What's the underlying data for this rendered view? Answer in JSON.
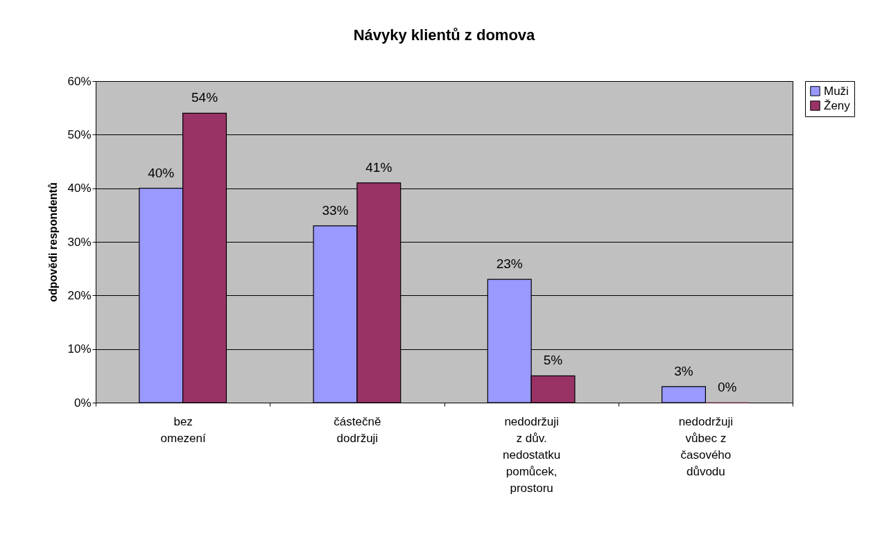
{
  "chart_data": {
    "type": "bar",
    "title": "Návyky klientů z domova",
    "ylabel": "odpovědi respondentů",
    "categories": [
      "bez omezení",
      "částečně dodržuji",
      "nedodržuji z dův. nedostatku pomůcek, prostoru",
      "nedodržuji vůbec z časového důvodu"
    ],
    "series": [
      {
        "name": "Muži",
        "color": "#9999ff",
        "values": [
          40,
          33,
          23,
          3
        ],
        "value_labels": [
          "40%",
          "33%",
          "23%",
          "3%"
        ]
      },
      {
        "name": "Ženy",
        "color": "#993366",
        "values": [
          54,
          41,
          5,
          0
        ],
        "value_labels": [
          "54%",
          "41%",
          "5%",
          "0%"
        ]
      }
    ],
    "ylim": [
      0,
      60
    ],
    "yticks": [
      {
        "value": 0,
        "label": "0%"
      },
      {
        "value": 10,
        "label": "10%"
      },
      {
        "value": 20,
        "label": "20%"
      },
      {
        "value": 30,
        "label": "30%"
      },
      {
        "value": 40,
        "label": "40%"
      },
      {
        "value": 50,
        "label": "50%"
      },
      {
        "value": 60,
        "label": "60%"
      }
    ],
    "grid": "y",
    "legend": "right"
  }
}
